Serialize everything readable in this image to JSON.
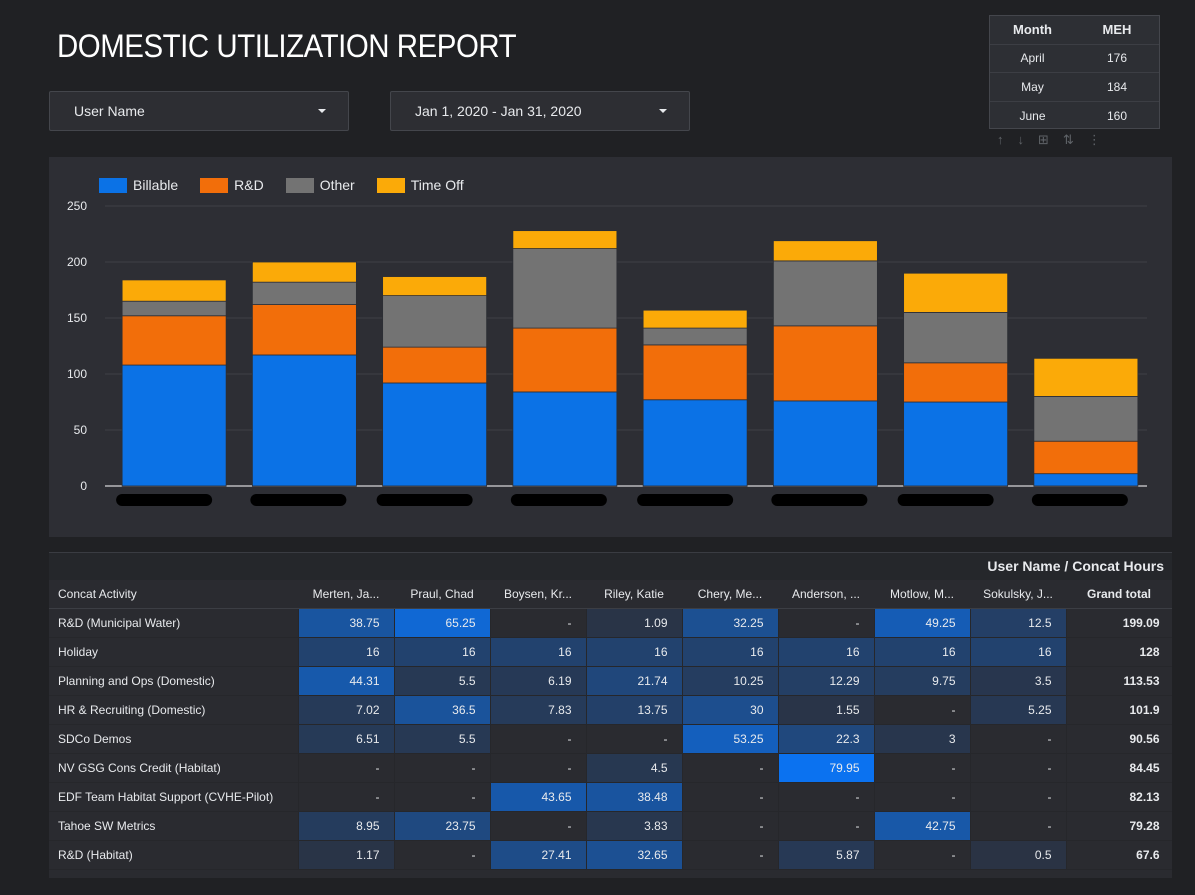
{
  "report": {
    "title": "DOMESTIC UTILIZATION REPORT"
  },
  "filters": {
    "user_name": "User Name",
    "date_range": "Jan 1, 2020 - Jan 31, 2020"
  },
  "meh_table": {
    "headers": [
      "Month",
      "MEH"
    ],
    "rows": [
      [
        "April",
        "176"
      ],
      [
        "May",
        "184"
      ],
      [
        "June",
        "160"
      ]
    ]
  },
  "colors": {
    "billable": "#0b72e6",
    "rnd": "#f26e0a",
    "other": "#737373",
    "timeoff": "#fbaa08"
  },
  "chart_data": {
    "type": "bar",
    "stacked": true,
    "series": [
      {
        "name": "Billable",
        "values": [
          108,
          117,
          92,
          84,
          77,
          76,
          75,
          11
        ]
      },
      {
        "name": "R&D",
        "values": [
          44,
          45,
          32,
          57,
          49,
          67,
          35,
          29
        ]
      },
      {
        "name": "Other",
        "values": [
          13,
          20,
          46,
          71,
          15,
          58,
          45,
          40
        ]
      },
      {
        "name": "Time Off",
        "values": [
          19,
          18,
          17,
          16,
          16,
          18,
          35,
          34
        ]
      }
    ],
    "y_ticks": [
      "250",
      "200",
      "150",
      "100",
      "50",
      "0"
    ],
    "ylim": [
      0,
      250
    ],
    "legend": "top-left"
  },
  "pivot": {
    "title": "User Name / Concat Hours",
    "columns": [
      "Concat Activity",
      "Merten, Ja...",
      "Praul, Chad",
      "Boysen, Kr...",
      "Riley, Katie",
      "Chery, Me...",
      "Anderson, ...",
      "Motlow, M...",
      "Sokulsky, J...",
      "Grand total"
    ],
    "rows": [
      [
        "R&D (Municipal Water)",
        "38.75",
        "65.25",
        "-",
        "1.09",
        "32.25",
        "-",
        "49.25",
        "12.5",
        "199.09"
      ],
      [
        "Holiday",
        "16",
        "16",
        "16",
        "16",
        "16",
        "16",
        "16",
        "16",
        "128"
      ],
      [
        "Planning and Ops (Domestic)",
        "44.31",
        "5.5",
        "6.19",
        "21.74",
        "10.25",
        "12.29",
        "9.75",
        "3.5",
        "113.53"
      ],
      [
        "HR & Recruiting (Domestic)",
        "7.02",
        "36.5",
        "7.83",
        "13.75",
        "30",
        "1.55",
        "-",
        "5.25",
        "101.9"
      ],
      [
        "SDCo Demos",
        "6.51",
        "5.5",
        "-",
        "-",
        "53.25",
        "22.3",
        "3",
        "-",
        "90.56"
      ],
      [
        "NV GSG Cons Credit (Habitat)",
        "-",
        "-",
        "-",
        "4.5",
        "-",
        "79.95",
        "-",
        "-",
        "84.45"
      ],
      [
        "EDF Team Habitat Support (CVHE-Pilot)",
        "-",
        "-",
        "43.65",
        "38.48",
        "-",
        "-",
        "-",
        "-",
        "82.13"
      ],
      [
        "Tahoe SW Metrics",
        "8.95",
        "23.75",
        "-",
        "3.83",
        "-",
        "-",
        "42.75",
        "-",
        "79.28"
      ],
      [
        "R&D (Habitat)",
        "1.17",
        "-",
        "27.41",
        "32.65",
        "-",
        "5.87",
        "-",
        "0.5",
        "67.6"
      ]
    ]
  }
}
